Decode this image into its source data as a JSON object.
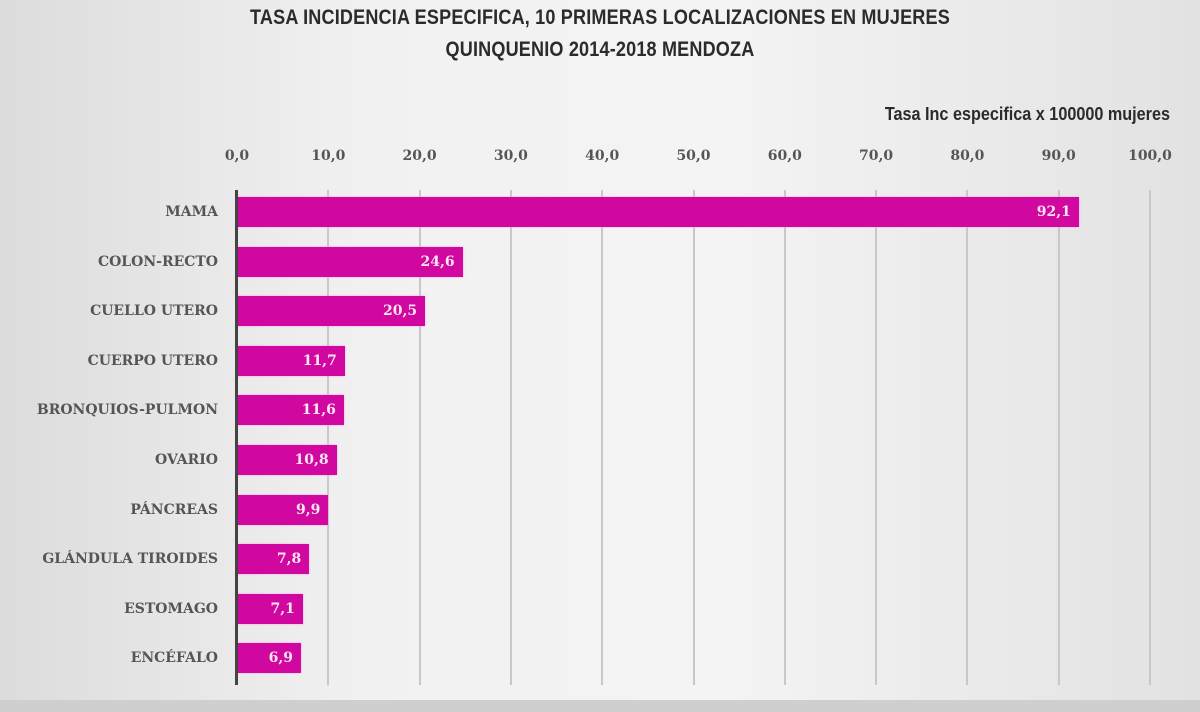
{
  "chart_data": {
    "type": "bar",
    "orientation": "horizontal",
    "title": "TASA INCIDENCIA  ESPECIFICA,   10 PRIMERAS  LOCALIZACIONES  EN  MUJERES",
    "subtitle": "QUINQUENIO  2014-2018 MENDOZA",
    "xlabel": "Tasa Inc especifica x 100000 mujeres",
    "ylabel": "",
    "xlim": [
      0,
      100
    ],
    "x_ticks": [
      "0,0",
      "10,0",
      "20,0",
      "30,0",
      "40,0",
      "50,0",
      "60,0",
      "70,0",
      "80,0",
      "90,0",
      "100,0"
    ],
    "grid": true,
    "legend": null,
    "bar_color": "#d1089f",
    "categories": [
      "MAMA",
      "COLON-RECTO",
      "CUELLO UTERO",
      "CUERPO UTERO",
      "BRONQUIOS-PULMON",
      "OVARIO",
      "PÁNCREAS",
      "GLÁNDULA TIROIDES",
      "ESTOMAGO",
      "ENCÉFALO"
    ],
    "values": [
      92.1,
      24.6,
      20.5,
      11.7,
      11.6,
      10.8,
      9.9,
      7.8,
      7.1,
      6.9
    ],
    "value_labels": [
      "92,1",
      "24,6",
      "20,5",
      "11,7",
      "11,6",
      "10,8",
      "9,9",
      "7,8",
      "7,1",
      "6,9"
    ]
  }
}
